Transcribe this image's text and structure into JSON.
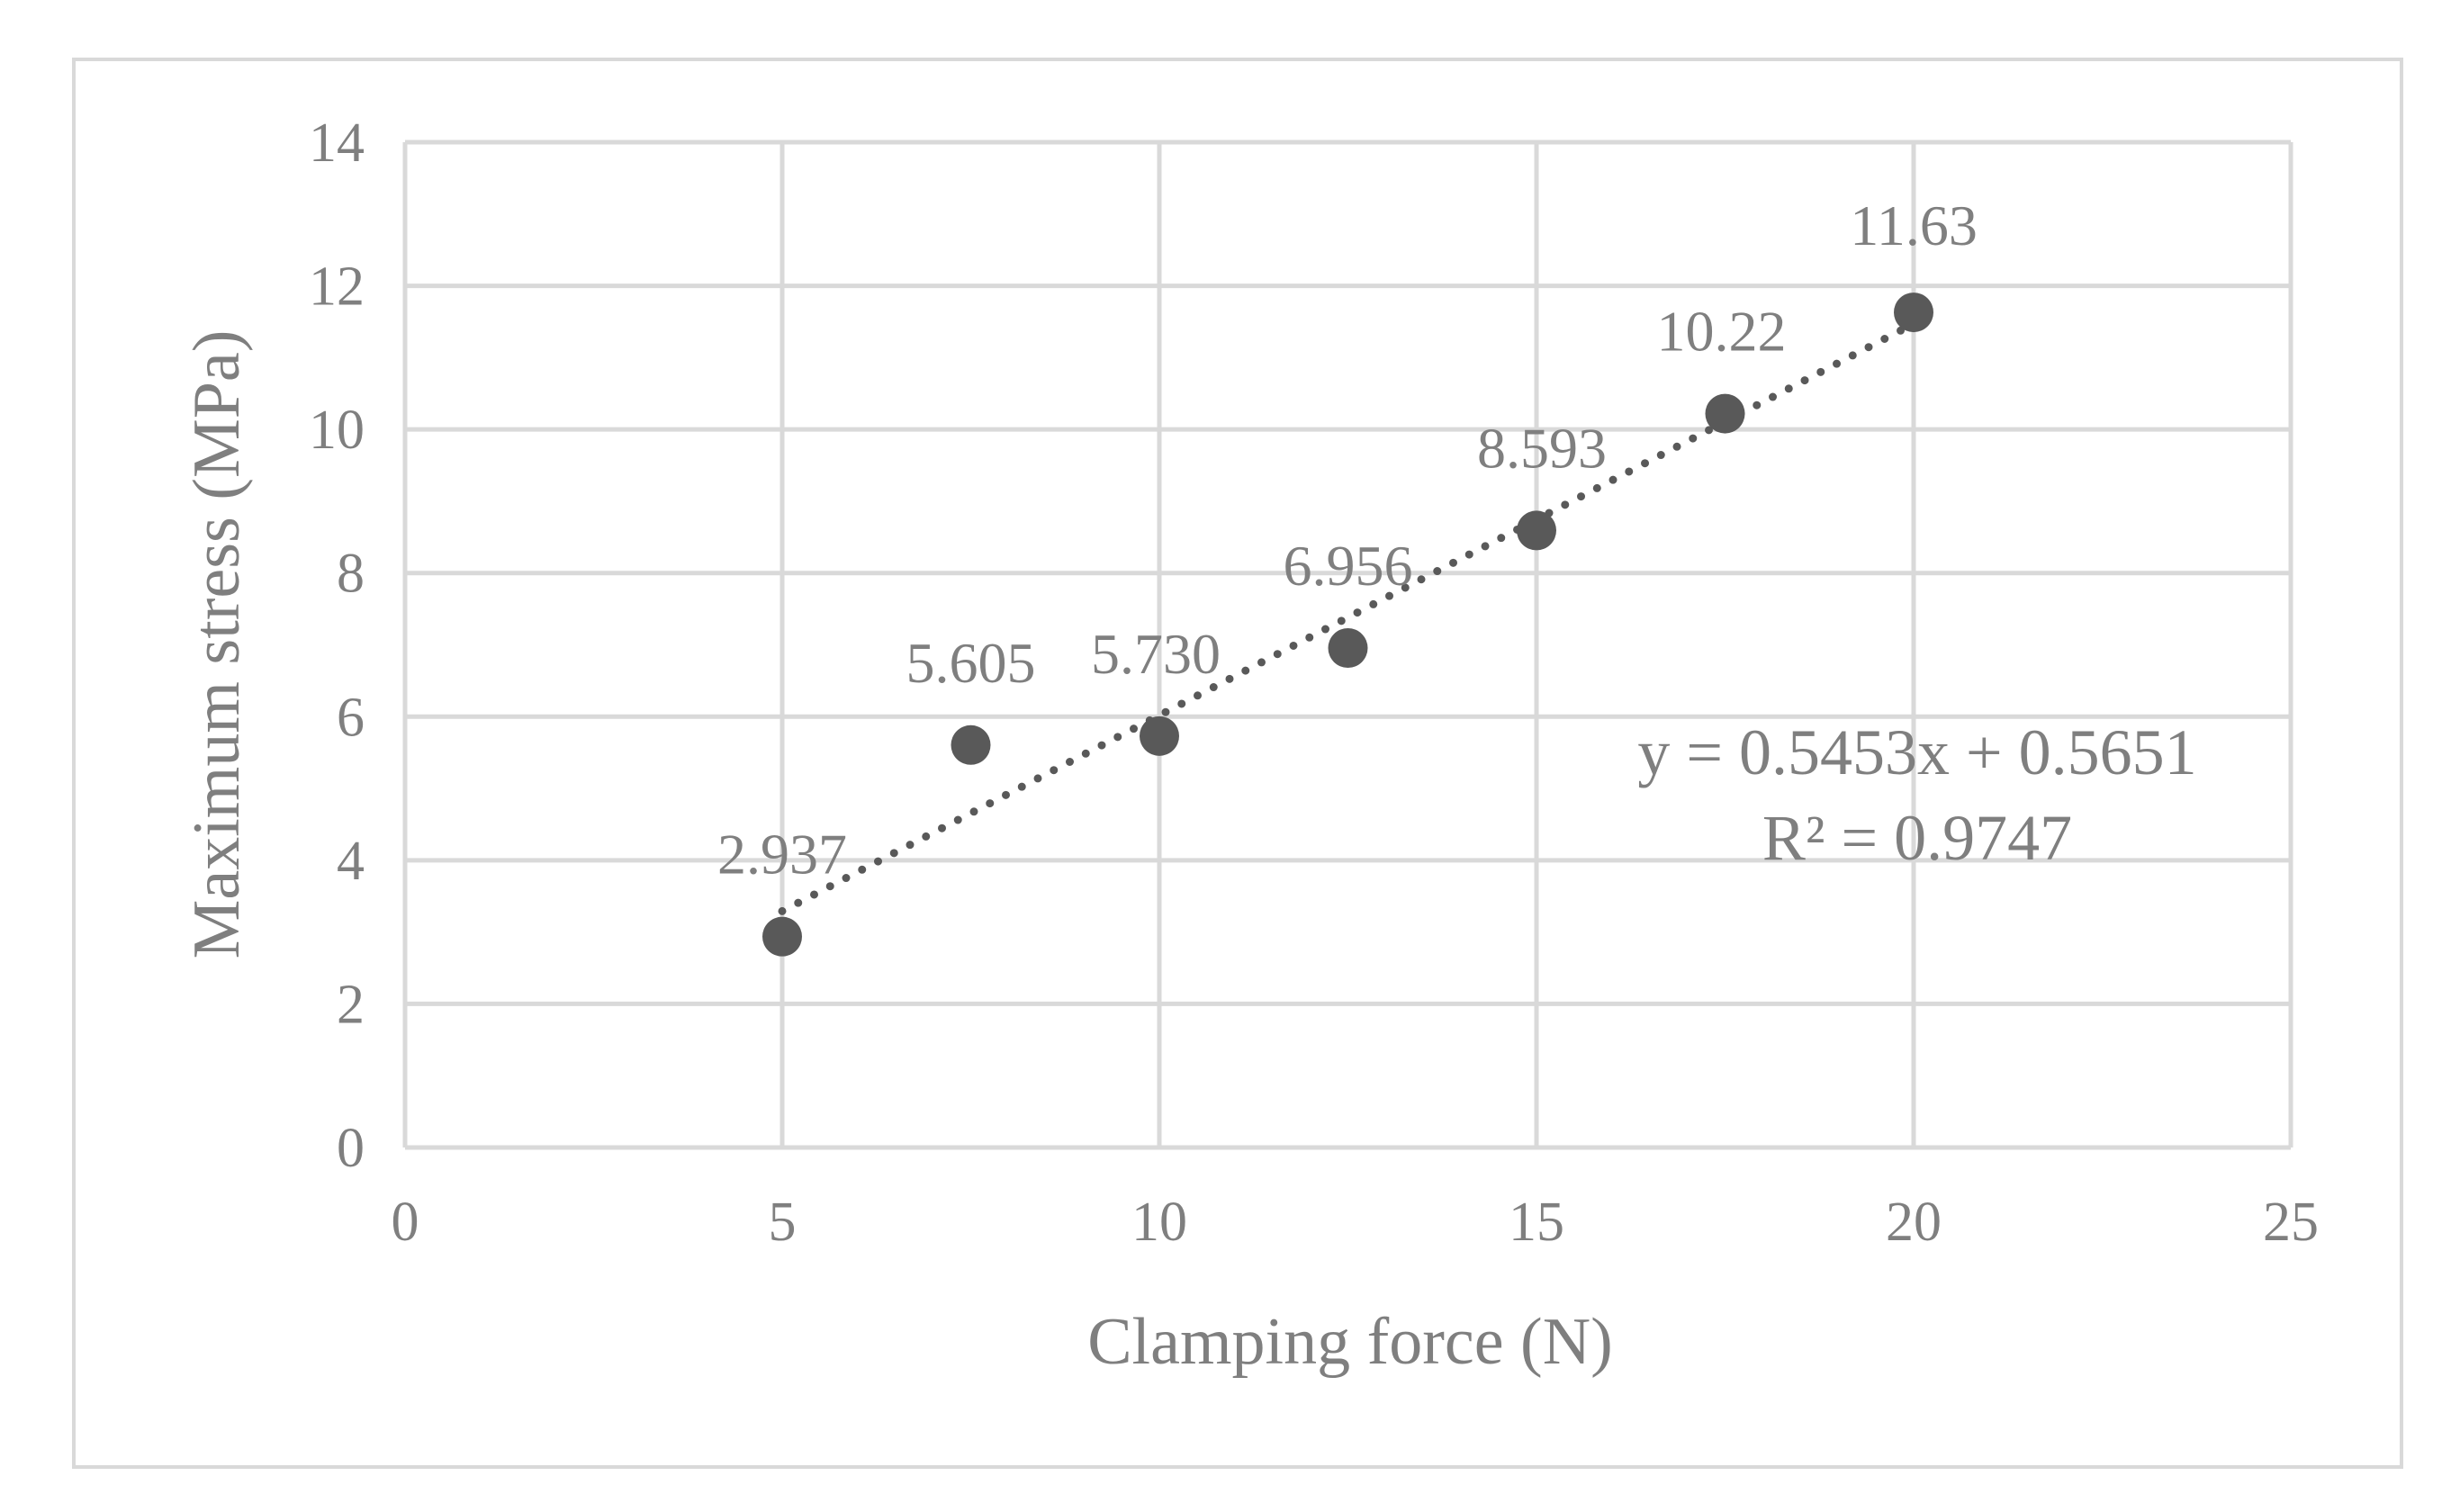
{
  "chart_data": {
    "type": "scatter",
    "title": "",
    "xlabel": "Clamping force (N)",
    "ylabel": "Maximum stress (MPa)",
    "xlim": [
      0,
      25
    ],
    "ylim": [
      0,
      14
    ],
    "xticks": [
      0,
      5,
      10,
      15,
      20,
      25
    ],
    "yticks": [
      0,
      2,
      4,
      6,
      8,
      10,
      12,
      14
    ],
    "grid": true,
    "legend": "none",
    "series": [
      {
        "x": [
          5,
          7.5,
          10,
          12.5,
          15,
          17.5,
          20
        ],
        "y": [
          2.937,
          5.605,
          5.73,
          6.956,
          8.593,
          10.22,
          11.63
        ],
        "labels": [
          "2.937",
          "5.605",
          "5.730",
          "6.956",
          "8.593",
          "10.22",
          "11.63"
        ],
        "color": "#595959"
      }
    ],
    "trendline": {
      "type": "linear",
      "slope": 0.5453,
      "intercept": 0.5651,
      "x_range": [
        5,
        20
      ],
      "style": "dotted",
      "equation": "y = 0.5453x + 0.5651",
      "r_squared": "R² = 0.9747"
    },
    "colors": {
      "axis_text": "#7f7f7f",
      "gridline": "#d9d9d9",
      "marker": "#595959",
      "frame": "#d9d9d9"
    }
  }
}
